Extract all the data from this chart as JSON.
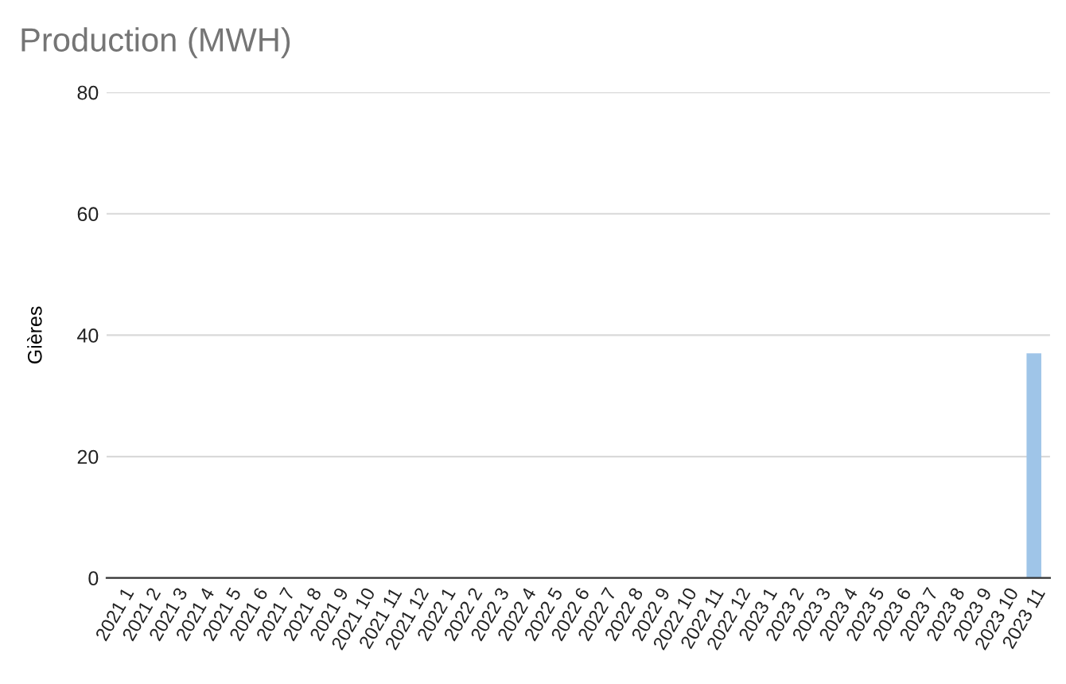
{
  "chart_data": {
    "type": "bar",
    "title": "Production (MWH)",
    "ylabel": "Gières",
    "categories": [
      "2021 1",
      "2021 2",
      "2021 3",
      "2021 4",
      "2021 5",
      "2021 6",
      "2021 7",
      "2021 8",
      "2021 9",
      "2021 10",
      "2021 11",
      "2021 12",
      "2022 1",
      "2022 2",
      "2022 3",
      "2022 4",
      "2022 5",
      "2022 6",
      "2022 7",
      "2022 8",
      "2022 9",
      "2022 10",
      "2022 11",
      "2022 12",
      "2023 1",
      "2023 2",
      "2023 3",
      "2023 4",
      "2023 5",
      "2023 6",
      "2023 7",
      "2023 8",
      "2023 9",
      "2023 10",
      "2023 11"
    ],
    "values": [
      0,
      0,
      0,
      0,
      0,
      0,
      0,
      0,
      0,
      0,
      0,
      0,
      0,
      0,
      0,
      0,
      0,
      0,
      0,
      0,
      0,
      0,
      0,
      0,
      0,
      0,
      0,
      0,
      0,
      0,
      0,
      0,
      0,
      0,
      37
    ],
    "color": "#9fc5e8",
    "ylim": [
      0,
      80
    ],
    "yticks": [
      0,
      20,
      40,
      60,
      80
    ],
    "grid": "y",
    "legend": false
  }
}
